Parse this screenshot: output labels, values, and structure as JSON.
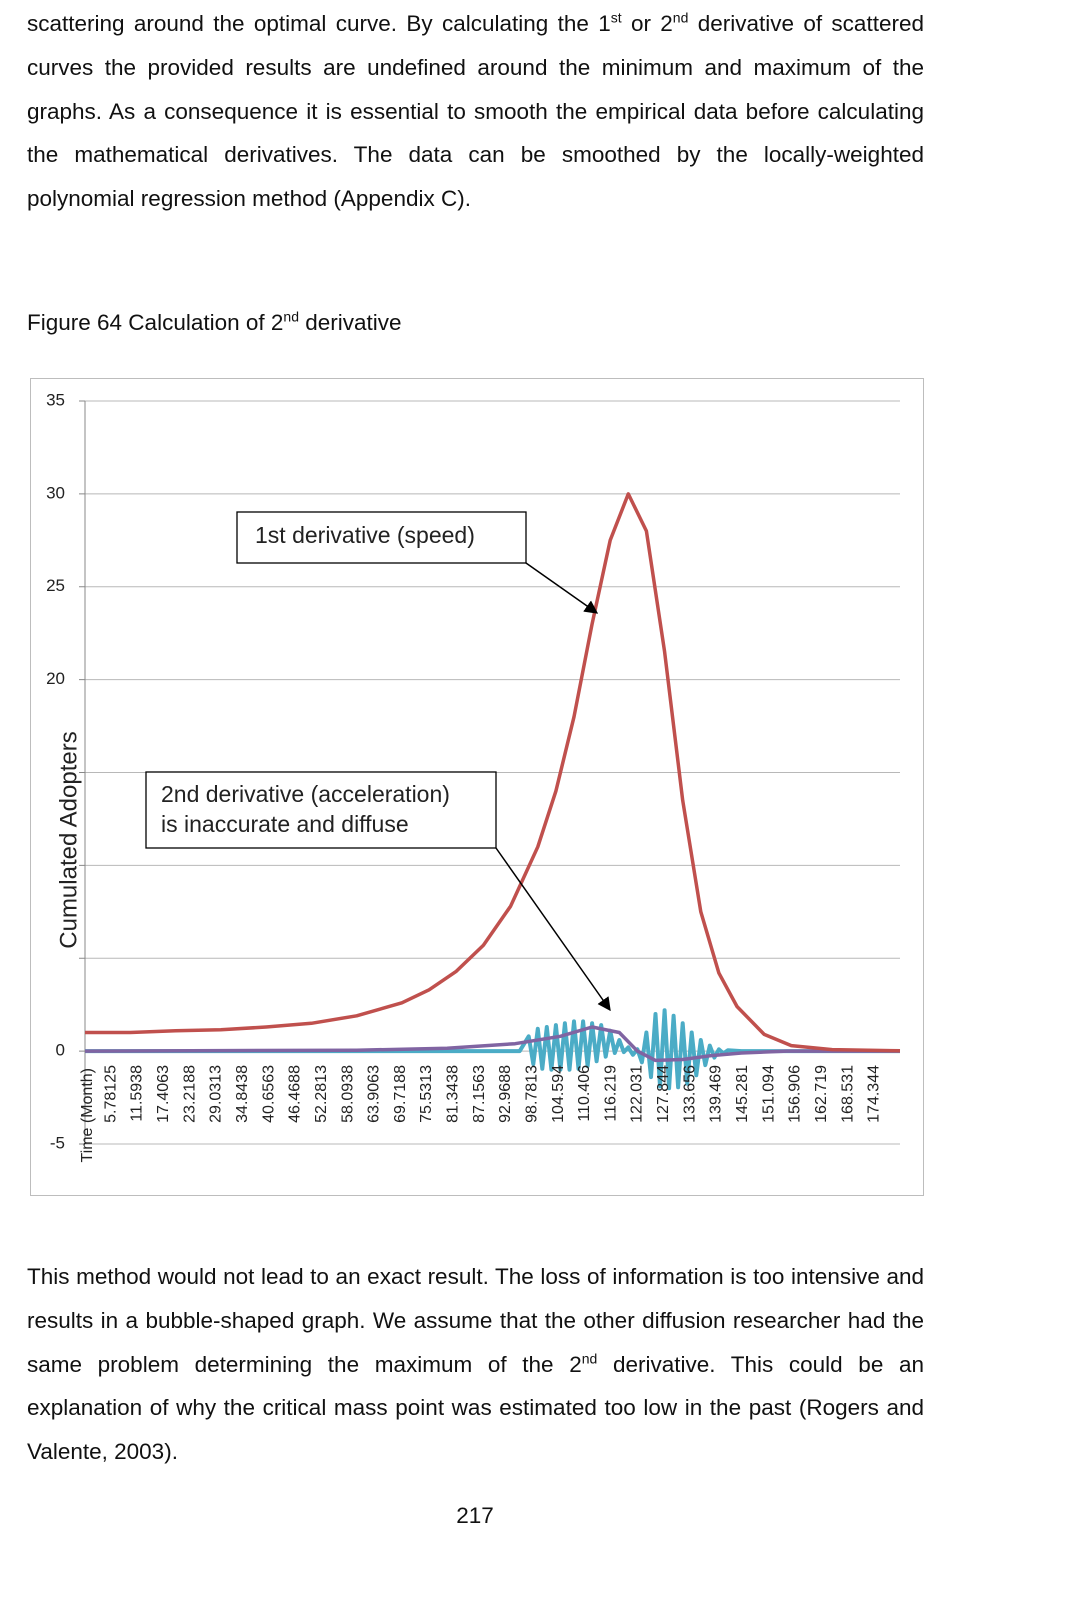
{
  "paragraph_1": [
    "scattering around the optimal curve. By calculating the 1",
    "st",
    " or 2",
    "nd",
    " derivative of scattered curves the provided results are undefined around the minimum and maximum of the graphs. As a consequence it is essential to smooth the empirical data before calculating the mathematical derivatives. The data can be smoothed by the locally-weighted polynomial regression method (Appendix C)."
  ],
  "caption": [
    "Figure 64 Calculation of 2",
    "nd",
    " derivative"
  ],
  "chart_data": {
    "type": "line",
    "y_label": "Cumulated  Adopters",
    "x_label": "Time (Month)",
    "xlim": [
      0,
      180
    ],
    "ylim": [
      -5,
      35
    ],
    "xticks": [
      5.78125,
      11.5938,
      17.4063,
      23.2188,
      29.0313,
      34.8438,
      40.6563,
      46.4688,
      52.2813,
      58.0938,
      63.9063,
      69.7188,
      75.5313,
      81.3438,
      87.1563,
      92.9688,
      98.7813,
      104.594,
      110.406,
      116.219,
      122.031,
      127.844,
      133.656,
      139.469,
      145.281,
      151.094,
      156.906,
      162.719,
      168.531,
      174.344
    ],
    "yticks": [
      35,
      30,
      25,
      20,
      {
        "value": 15,
        "label": null
      },
      {
        "value": 10,
        "label": null
      },
      {
        "value": 5,
        "label": null
      },
      0,
      -5
    ],
    "grid": true,
    "series": [
      {
        "color": "#4bacc6",
        "x": [
          0,
          96,
          98,
          99,
          100,
          101,
          102,
          103,
          104,
          105,
          106,
          107,
          108,
          109,
          110,
          111,
          112,
          113,
          114,
          115,
          116,
          117,
          118,
          119,
          120,
          121,
          122,
          123,
          124,
          125,
          126,
          127,
          128,
          129,
          130,
          131,
          132,
          133,
          134,
          135,
          136,
          137,
          138,
          139,
          140,
          141,
          142,
          145,
          180
        ],
        "values": [
          0,
          0,
          0.8,
          -0.7,
          1.2,
          -0.95,
          1.3,
          -1.0,
          1.4,
          -1.0,
          1.5,
          -1.0,
          1.6,
          -0.95,
          1.6,
          -0.8,
          1.5,
          -0.55,
          1.4,
          -0.3,
          1.1,
          -0.1,
          0.6,
          -0.05,
          0.2,
          -0.2,
          0.1,
          -0.6,
          1.0,
          -1.4,
          2.0,
          -1.9,
          2.2,
          -2.0,
          1.9,
          -1.95,
          1.5,
          -1.75,
          1.0,
          -1.3,
          0.6,
          -0.75,
          0.3,
          -0.35,
          0.1,
          -0.12,
          0.05,
          0,
          0
        ]
      },
      {
        "color": "#8064a2",
        "x": [
          0,
          60,
          80,
          95,
          105,
          112,
          118,
          122,
          126,
          132,
          138,
          145,
          155,
          180
        ],
        "values": [
          0,
          0.05,
          0.15,
          0.4,
          0.8,
          1.3,
          1.0,
          0,
          -0.5,
          -0.45,
          -0.25,
          -0.1,
          0,
          0
        ]
      },
      {
        "color": "#c0504d",
        "x": [
          0,
          10,
          20,
          30,
          40,
          50,
          60,
          70,
          76,
          82,
          88,
          94,
          100,
          104,
          108,
          112,
          116,
          120,
          124,
          128,
          132,
          136,
          140,
          144,
          150,
          156,
          165,
          180
        ],
        "values": [
          1.0,
          1.0,
          1.1,
          1.15,
          1.3,
          1.5,
          1.9,
          2.6,
          3.3,
          4.3,
          5.7,
          7.8,
          11,
          14,
          18,
          23,
          27.5,
          30,
          28,
          21.5,
          13.5,
          7.5,
          4.2,
          2.4,
          0.9,
          0.3,
          0.08,
          0.02
        ]
      }
    ],
    "annotations": [
      {
        "lines": [
          "1st derivative (speed)"
        ]
      },
      {
        "lines": [
          "2nd derivative (acceleration)",
          "is inaccurate and diffuse"
        ]
      }
    ]
  },
  "paragraph_2": [
    "This method would not lead to an exact result. The loss of information is too intensive and results in a bubble-shaped graph. We assume that the other diffusion researcher had the same problem determining the maximum of the 2",
    "nd",
    " derivative. This could be an explanation of why the critical mass point was estimated too low in the past (Rogers and Valente, 2003)."
  ],
  "page_number": "217"
}
